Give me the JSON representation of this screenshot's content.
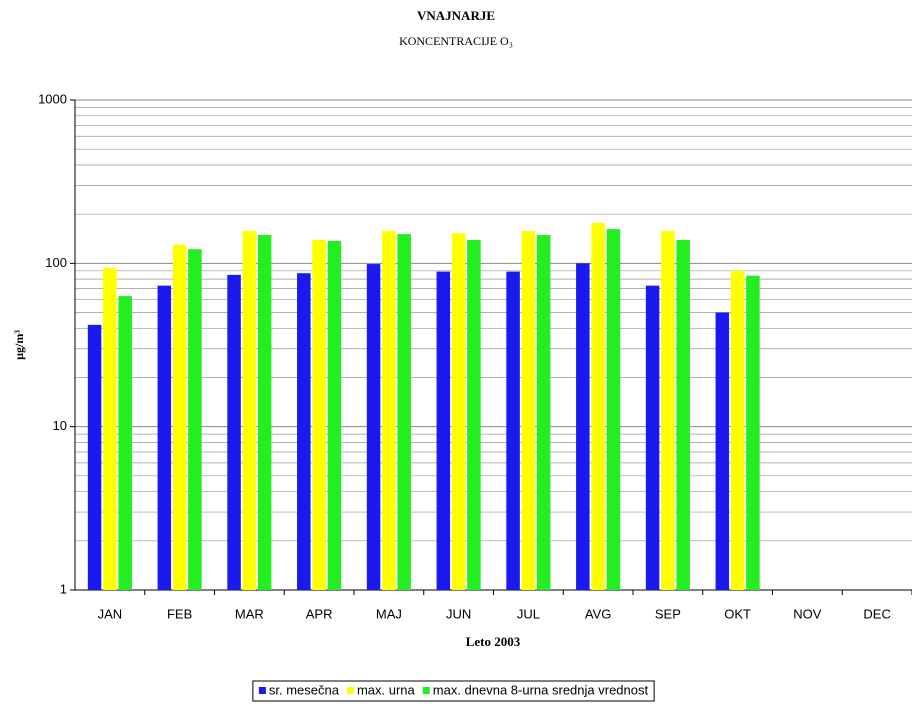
{
  "chart_data": {
    "type": "bar",
    "title": "VNAJNARJE",
    "subtitle": "KONCENTRACIJE O₃",
    "y_label": "µg/m³",
    "x_label": "Leto 2003",
    "categories": [
      "JAN",
      "FEB",
      "MAR",
      "APR",
      "MAJ",
      "JUN",
      "JUL",
      "AVG",
      "SEP",
      "OKT",
      "NOV",
      "DEC"
    ],
    "series": [
      {
        "name": "sr. mesečna",
        "color": "#1a1aee",
        "values": [
          42,
          73,
          85,
          87,
          99,
          89,
          89,
          100,
          73,
          50,
          null,
          null
        ]
      },
      {
        "name": "max. urna",
        "color": "#ffff00",
        "values": [
          94,
          130,
          158,
          139,
          158,
          153,
          158,
          177,
          158,
          90,
          null,
          null
        ]
      },
      {
        "name": "max. dnevna 8-urna srednja vrednost",
        "color": "#22ee22",
        "values": [
          63,
          122,
          149,
          137,
          151,
          139,
          149,
          162,
          139,
          84,
          null,
          null
        ]
      }
    ],
    "ylim": [
      1,
      1000
    ],
    "yticks": [
      1,
      10,
      100,
      1000
    ],
    "log_scale": true,
    "grid": true,
    "minor_grid": true,
    "legend": "bottom"
  }
}
